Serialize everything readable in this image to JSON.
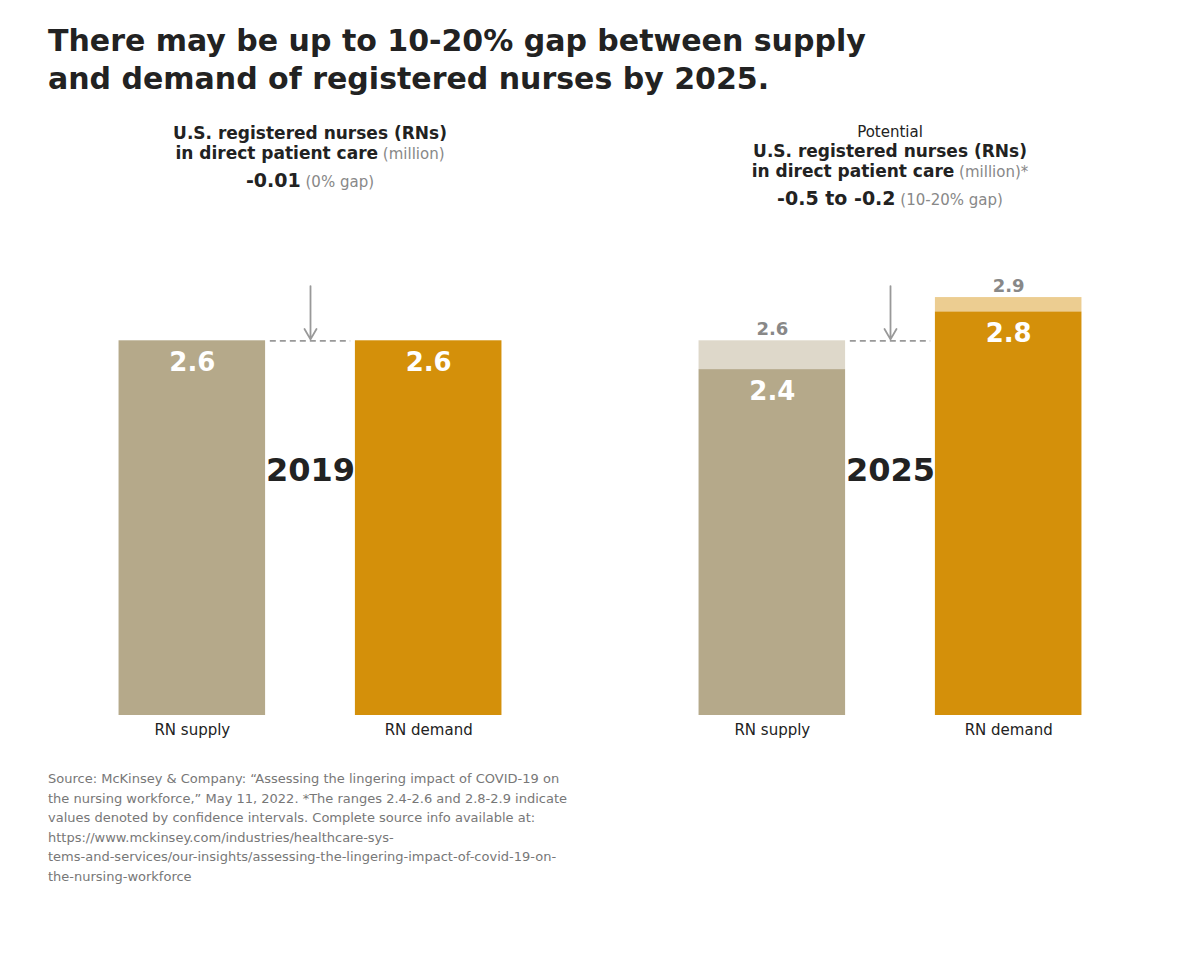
{
  "title": "There may be up to 10-20% gap between supply\nand demand of registered nurses by 2025.",
  "chart_data": [
    {
      "type": "bar",
      "subtitle": "U.S. registered nurses (RNs)\nin direct patient care",
      "unit": "(million)",
      "gap": "-0.01",
      "gap_note": "(0% gap)",
      "annotation": "2019",
      "categories": [
        "RN supply",
        "RN demand"
      ],
      "values": [
        2.6,
        2.6
      ],
      "colors": [
        "#b5a98a",
        "#d4900a"
      ],
      "data_labels": true,
      "ylim": [
        0,
        3.4
      ],
      "tick_labels": "x"
    },
    {
      "type": "bar",
      "subtitle_lead": "Potential",
      "subtitle": "U.S. registered nurses (RNs)\nin direct patient care",
      "unit": "(million)*",
      "gap": "-0.5 to -0.2",
      "gap_note": "(10-20% gap)",
      "annotation": "2025",
      "categories": [
        "RN supply",
        "RN demand"
      ],
      "values": [
        2.4,
        2.8
      ],
      "upper": [
        2.6,
        2.9
      ],
      "colors": [
        "#b5a98a",
        "#d4900a"
      ],
      "data_labels": true,
      "ylim": [
        0,
        3.4
      ],
      "tick_labels": "x"
    }
  ],
  "caption": "Source: McKinsey & Company: “Assessing the lingering impact of COVID-19 on\nthe nursing workforce,” May 11, 2022. *The ranges 2.4-2.6 and 2.8-2.9 indicate\nvalues denoted by confidence intervals. Complete source info available at:\nhttps://www.mckinsey.com/industries/healthcare-sys-\ntems-and-services/our-insights/assessing-the-lingering-impact-of-covid-19-on-\nthe-nursing-workforce"
}
